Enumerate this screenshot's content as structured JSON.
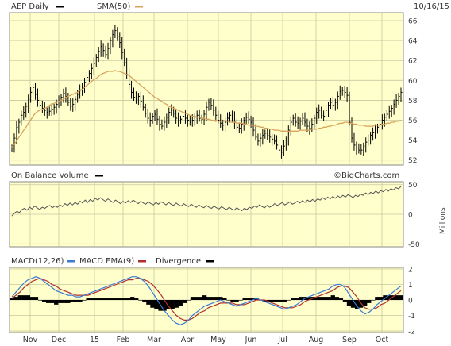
{
  "header": {
    "symbol_label": "AEP Daily",
    "sma_label": "SMA(50)",
    "date": "10/16/15"
  },
  "obv_header": {
    "label": "On Balance Volume",
    "watermark": "©BigCharts.com",
    "units_label": "Millions"
  },
  "macd_header": {
    "macd_label": "MACD(12,26)",
    "ema_label": "MACD EMA(9)",
    "divergence_label": "Divergence"
  },
  "colors": {
    "panel_bg": "#ffffcc",
    "grid": "#c8c8a0",
    "price_bar": "#000000",
    "sma": "#d9a35a",
    "obv": "#555555",
    "macd": "#3a7bd5",
    "macd_ema": "#b03030",
    "divergence": "#000000"
  },
  "chart_data": [
    {
      "type": "line",
      "name": "price",
      "x_labels": [
        "Nov",
        "Dec",
        "15",
        "Feb",
        "Mar",
        "Apr",
        "May",
        "Jun",
        "Jul",
        "Aug",
        "Sep",
        "Oct"
      ],
      "y_ticks": [
        52,
        54,
        56,
        58,
        60,
        62,
        64,
        66
      ],
      "ylim": [
        51.5,
        66.8
      ],
      "grid": true,
      "series": [
        {
          "name": "AEP Daily",
          "style": "ohlc-bars",
          "values": [
            53.2,
            54.2,
            55.3,
            55.8,
            56.5,
            56.8,
            57.4,
            58.1,
            58.8,
            59.3,
            58.6,
            58.0,
            57.5,
            57.2,
            57.0,
            56.8,
            56.9,
            57.1,
            57.3,
            57.6,
            57.9,
            58.3,
            58.7,
            58.4,
            57.8,
            57.4,
            57.6,
            58.1,
            58.6,
            59.0,
            59.4,
            59.8,
            60.3,
            60.7,
            61.2,
            61.7,
            62.3,
            62.9,
            63.4,
            63.0,
            62.6,
            63.2,
            64.0,
            64.6,
            65.0,
            64.4,
            63.8,
            62.8,
            61.8,
            60.6,
            59.6,
            58.8,
            58.3,
            58.1,
            58.4,
            57.9,
            57.3,
            56.7,
            56.2,
            56.0,
            56.4,
            56.6,
            56.1,
            55.6,
            55.4,
            55.8,
            56.3,
            56.8,
            57.0,
            56.7,
            56.2,
            56.0,
            56.1,
            56.4,
            56.2,
            56.0,
            55.8,
            56.0,
            56.3,
            56.5,
            56.2,
            56.1,
            56.6,
            57.3,
            57.8,
            57.5,
            57.0,
            56.5,
            56.0,
            55.7,
            55.5,
            55.8,
            56.2,
            56.5,
            56.3,
            55.8,
            55.3,
            55.2,
            55.6,
            56.0,
            56.3,
            56.1,
            55.8,
            55.0,
            54.3,
            53.9,
            54.2,
            54.5,
            54.7,
            54.5,
            54.3,
            54.1,
            53.9,
            53.5,
            53.0,
            52.8,
            53.4,
            54.0,
            55.0,
            55.8,
            56.2,
            55.8,
            55.7,
            55.9,
            56.2,
            55.8,
            55.4,
            55.2,
            55.6,
            56.2,
            56.8,
            57.0,
            56.5,
            56.4,
            57.0,
            57.5,
            57.8,
            57.5,
            57.8,
            58.4,
            58.9,
            59.0,
            58.8,
            58.5,
            55.8,
            54.2,
            53.5,
            53.2,
            53.0,
            53.0,
            53.4,
            53.8,
            54.0,
            54.5,
            54.8,
            55.0,
            55.3,
            55.6,
            56.0,
            56.3,
            56.6,
            56.9,
            57.2,
            57.6,
            58.0,
            58.4,
            58.8
          ]
        },
        {
          "name": "SMA(50)",
          "style": "line",
          "values": [
            53.3,
            53.6,
            53.9,
            54.3,
            54.6,
            55.0,
            55.3,
            55.7,
            56.0,
            56.4,
            56.7,
            56.9,
            57.0,
            57.1,
            57.2,
            57.3,
            57.5,
            57.6,
            57.7,
            57.8,
            57.9,
            58.0,
            58.1,
            58.3,
            58.4,
            58.5,
            58.6,
            58.7,
            58.8,
            59.0,
            59.1,
            59.3,
            59.5,
            59.7,
            59.9,
            60.1,
            60.2,
            60.4,
            60.6,
            60.7,
            60.8,
            60.9,
            60.9,
            60.9,
            61.0,
            60.9,
            60.9,
            60.8,
            60.7,
            60.6,
            60.5,
            60.3,
            60.1,
            59.9,
            59.7,
            59.5,
            59.3,
            59.1,
            58.9,
            58.7,
            58.5,
            58.3,
            58.2,
            58.0,
            57.9,
            57.7,
            57.6,
            57.4,
            57.3,
            57.2,
            57.1,
            57.0,
            56.9,
            56.8,
            56.7,
            56.6,
            56.5,
            56.4,
            56.4,
            56.3,
            56.3,
            56.2,
            56.2,
            56.1,
            56.1,
            56.0,
            56.0,
            56.0,
            55.9,
            55.9,
            55.9,
            55.9,
            55.9,
            55.8,
            55.8,
            55.8,
            55.7,
            55.7,
            55.7,
            55.6,
            55.6,
            55.5,
            55.5,
            55.5,
            55.4,
            55.4,
            55.3,
            55.3,
            55.2,
            55.2,
            55.1,
            55.1,
            55.0,
            55.0,
            55.0,
            54.9,
            54.9,
            54.9,
            54.9,
            54.9,
            54.9,
            54.9,
            54.9,
            55.0,
            55.0,
            55.0,
            55.0,
            55.0,
            55.1,
            55.1,
            55.1,
            55.2,
            55.2,
            55.3,
            55.3,
            55.4,
            55.4,
            55.5,
            55.5,
            55.6,
            55.7,
            55.7,
            55.8,
            55.8,
            55.7,
            55.7,
            55.6,
            55.6,
            55.5,
            55.5,
            55.5,
            55.4,
            55.4,
            55.4,
            55.4,
            55.5,
            55.5,
            55.5,
            55.6,
            55.6,
            55.7,
            55.7,
            55.8,
            55.8,
            55.9,
            55.9,
            56.0
          ]
        }
      ]
    },
    {
      "type": "line",
      "name": "obv",
      "y_ticks": [
        50,
        0,
        -50
      ],
      "ylim": [
        -55,
        55
      ],
      "ylabel": "Millions",
      "grid": true,
      "series": [
        {
          "name": "On Balance Volume",
          "values": [
            -3,
            2,
            5,
            3,
            8,
            10,
            7,
            12,
            9,
            14,
            11,
            8,
            12,
            10,
            13,
            15,
            11,
            14,
            12,
            16,
            13,
            18,
            15,
            19,
            16,
            20,
            17,
            22,
            19,
            24,
            20,
            25,
            22,
            27,
            24,
            28,
            25,
            22,
            26,
            23,
            20,
            24,
            21,
            18,
            22,
            19,
            23,
            20,
            24,
            21,
            18,
            22,
            19,
            17,
            21,
            18,
            16,
            20,
            17,
            21,
            19,
            16,
            20,
            17,
            15,
            19,
            16,
            14,
            18,
            15,
            13,
            17,
            14,
            12,
            16,
            13,
            11,
            15,
            12,
            10,
            14,
            11,
            9,
            13,
            10,
            8,
            12,
            9,
            7,
            11,
            8,
            6,
            10,
            8,
            12,
            10,
            14,
            12,
            16,
            13,
            11,
            15,
            12,
            14,
            18,
            15,
            17,
            20,
            16,
            18,
            21,
            17,
            19,
            22,
            19,
            23,
            20,
            24,
            21,
            25,
            22,
            26,
            24,
            28,
            25,
            29,
            26,
            30,
            27,
            31,
            28,
            32,
            29,
            33,
            31,
            28,
            32,
            30,
            34,
            32,
            36,
            33,
            37,
            35,
            39,
            36,
            40,
            38,
            42,
            39,
            43,
            41,
            45,
            43,
            47
          ]
        }
      ]
    },
    {
      "type": "line",
      "name": "macd",
      "x_labels": [
        "Nov",
        "Dec",
        "15",
        "Feb",
        "Mar",
        "Apr",
        "May",
        "Jun",
        "Jul",
        "Aug",
        "Sep",
        "Oct"
      ],
      "y_ticks": [
        2,
        1,
        0,
        -1,
        -2
      ],
      "ylim": [
        -2.1,
        2.1
      ],
      "grid": true,
      "series": [
        {
          "name": "MACD(12,26)",
          "values": [
            0.2,
            0.5,
            0.8,
            1.1,
            1.3,
            1.4,
            1.5,
            1.4,
            1.2,
            1.0,
            0.8,
            0.6,
            0.5,
            0.4,
            0.3,
            0.3,
            0.2,
            0.2,
            0.3,
            0.4,
            0.5,
            0.6,
            0.7,
            0.8,
            0.9,
            1.0,
            1.1,
            1.2,
            1.3,
            1.4,
            1.5,
            1.5,
            1.4,
            1.2,
            0.9,
            0.5,
            0.1,
            -0.3,
            -0.7,
            -1.0,
            -1.3,
            -1.5,
            -1.6,
            -1.5,
            -1.3,
            -1.0,
            -0.8,
            -0.6,
            -0.4,
            -0.3,
            -0.2,
            -0.1,
            0.0,
            -0.1,
            -0.2,
            -0.3,
            -0.4,
            -0.3,
            -0.2,
            -0.1,
            0.0,
            0.1,
            0.0,
            -0.1,
            -0.2,
            -0.3,
            -0.4,
            -0.5,
            -0.6,
            -0.5,
            -0.4,
            -0.3,
            -0.1,
            0.1,
            0.2,
            0.3,
            0.4,
            0.5,
            0.6,
            0.7,
            0.9,
            1.0,
            1.0,
            0.8,
            0.4,
            0.0,
            -0.4,
            -0.7,
            -0.9,
            -0.8,
            -0.6,
            -0.3,
            -0.1,
            0.1,
            0.3,
            0.5,
            0.7,
            0.9
          ]
        },
        {
          "name": "MACD EMA(9)",
          "values": [
            0.1,
            0.3,
            0.5,
            0.8,
            1.0,
            1.2,
            1.3,
            1.4,
            1.3,
            1.2,
            1.0,
            0.9,
            0.7,
            0.6,
            0.5,
            0.4,
            0.3,
            0.3,
            0.3,
            0.3,
            0.4,
            0.5,
            0.6,
            0.7,
            0.8,
            0.9,
            1.0,
            1.1,
            1.2,
            1.3,
            1.3,
            1.4,
            1.4,
            1.3,
            1.2,
            1.0,
            0.7,
            0.4,
            0.0,
            -0.4,
            -0.7,
            -1.0,
            -1.2,
            -1.3,
            -1.3,
            -1.2,
            -1.0,
            -0.8,
            -0.7,
            -0.5,
            -0.4,
            -0.3,
            -0.2,
            -0.2,
            -0.2,
            -0.2,
            -0.3,
            -0.3,
            -0.3,
            -0.2,
            -0.1,
            0.0,
            0.0,
            0.0,
            -0.1,
            -0.2,
            -0.3,
            -0.4,
            -0.5,
            -0.5,
            -0.5,
            -0.4,
            -0.3,
            -0.1,
            0.0,
            0.1,
            0.2,
            0.3,
            0.4,
            0.5,
            0.6,
            0.8,
            0.9,
            0.9,
            0.8,
            0.5,
            0.2,
            -0.2,
            -0.5,
            -0.6,
            -0.6,
            -0.5,
            -0.3,
            -0.2,
            0.0,
            0.2,
            0.4,
            0.6
          ]
        },
        {
          "name": "Divergence",
          "style": "histogram",
          "values": [
            0.1,
            0.2,
            0.3,
            0.3,
            0.3,
            0.2,
            0.2,
            0.0,
            -0.1,
            -0.2,
            -0.2,
            -0.3,
            -0.2,
            -0.2,
            -0.2,
            -0.1,
            -0.1,
            -0.1,
            0.0,
            0.1,
            0.1,
            0.1,
            0.1,
            0.1,
            0.1,
            0.1,
            0.1,
            0.1,
            0.1,
            0.1,
            0.2,
            0.1,
            0.0,
            -0.1,
            -0.3,
            -0.5,
            -0.6,
            -0.7,
            -0.7,
            -0.6,
            -0.6,
            -0.5,
            -0.4,
            -0.2,
            0.0,
            0.2,
            0.2,
            0.2,
            0.3,
            0.2,
            0.2,
            0.2,
            0.2,
            0.1,
            0.0,
            -0.1,
            -0.1,
            0.0,
            0.1,
            0.1,
            0.1,
            0.1,
            0.0,
            -0.1,
            -0.1,
            -0.1,
            -0.1,
            -0.1,
            -0.1,
            0.0,
            0.1,
            0.1,
            0.2,
            0.2,
            0.2,
            0.2,
            0.2,
            0.2,
            0.2,
            0.2,
            0.3,
            0.2,
            0.1,
            -0.1,
            -0.4,
            -0.5,
            -0.6,
            -0.5,
            -0.4,
            -0.2,
            0.0,
            0.2,
            0.2,
            0.3,
            0.3,
            0.3,
            0.3,
            0.3
          ]
        }
      ]
    }
  ]
}
